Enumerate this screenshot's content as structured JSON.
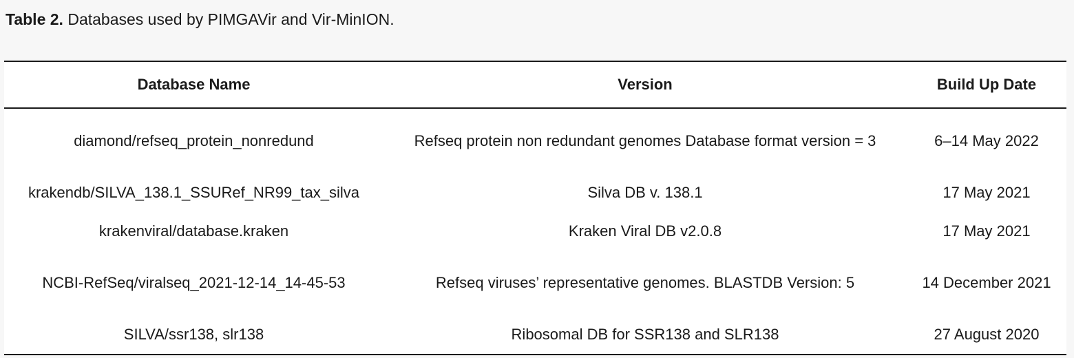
{
  "caption": {
    "label": "Table 2.",
    "text": " Databases used by PIMGAVir and Vir-MinION."
  },
  "table": {
    "headers": [
      "Database Name",
      "Version",
      "Build Up Date"
    ],
    "rows": [
      [
        "diamond/refseq_protein_nonredund",
        "Refseq protein non redundant genomes Database format version = 3",
        "6–14 May 2022"
      ],
      [
        "krakendb/SILVA_138.1_SSURef_NR99_tax_silva",
        "Silva DB v. 138.1",
        "17 May 2021"
      ],
      [
        "krakenviral/database.kraken",
        "Kraken Viral DB v2.0.8",
        "17 May 2021"
      ],
      [
        "NCBI-RefSeq/viralseq_2021-12-14_14-45-53",
        "Refseq viruses’ representative genomes. BLASTDB Version: 5",
        "14 December 2021"
      ],
      [
        "SILVA/ssr138, slr138",
        "Ribosomal DB for SSR138 and SLR138",
        "27 August 2020"
      ]
    ]
  }
}
